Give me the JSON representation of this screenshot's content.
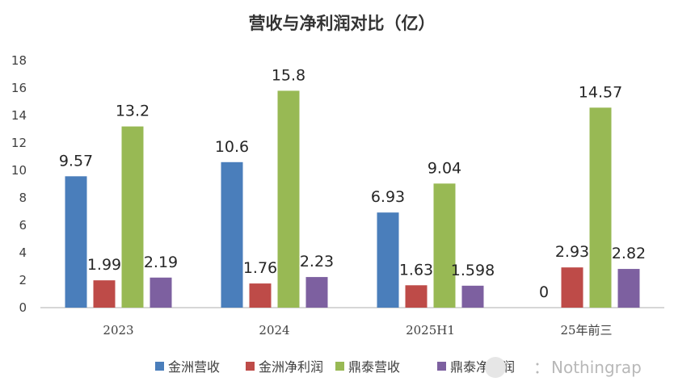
{
  "chart_data": {
    "type": "bar",
    "title": "营收与净利润对比（亿）",
    "categories": [
      "2023",
      "2024",
      "2025H1",
      "25年前三"
    ],
    "series": [
      {
        "name": "金洲营收",
        "color": "#4a7ebb",
        "values": [
          9.57,
          10.6,
          6.93,
          0
        ],
        "labels": [
          "9.57",
          "10.6",
          "6.93",
          "0"
        ]
      },
      {
        "name": "金洲净利润",
        "color": "#be4b48",
        "values": [
          1.99,
          1.76,
          1.63,
          2.93
        ],
        "labels": [
          "1.99",
          "1.76",
          "1.63",
          "2.93"
        ]
      },
      {
        "name": "鼎泰营收",
        "color": "#98b954",
        "values": [
          13.2,
          15.8,
          9.04,
          14.57
        ],
        "labels": [
          "13.2",
          "15.8",
          "9.04",
          "14.57"
        ]
      },
      {
        "name": "鼎泰净利润",
        "color": "#7d60a0",
        "values": [
          2.19,
          2.23,
          1.598,
          2.82
        ],
        "labels": [
          "2.19",
          "2.23",
          "1.598",
          "2.82"
        ]
      }
    ],
    "yticks": [
      "0",
      "2",
      "4",
      "6",
      "8",
      "10",
      "12",
      "14",
      "16",
      "18"
    ],
    "ylim": [
      0,
      18
    ],
    "xlabel": "",
    "ylabel": "",
    "grid": false,
    "legend_position": "bottom"
  },
  "watermark": "Nothingrap",
  "watermark_prefix": "："
}
